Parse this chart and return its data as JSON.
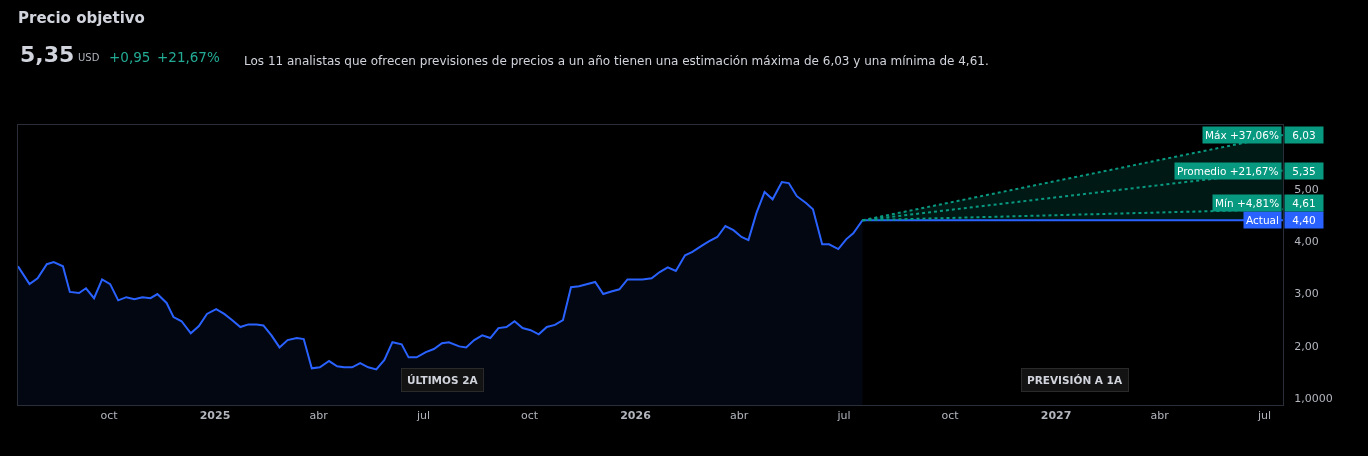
{
  "chart_data": {
    "type": "area",
    "title": "Precio objetivo",
    "annotations": [
      "5,35",
      "USD",
      "+0,95",
      "+21,67%",
      "Los 11 analistas que ofrecen previsiones de precios a un año tienen una estimación máxima de 6,03 y una mínima de 4,61.",
      "ÚLTIMOS 2A",
      "PREVISIÓN A 1A"
    ],
    "xlim": [
      "2024-07-14",
      "2027-07-17"
    ],
    "xticks": [
      {
        "value": "2024-10-01",
        "label": "oct"
      },
      {
        "value": "2025-01-01",
        "label": "2025"
      },
      {
        "value": "2025-04-01",
        "label": "abr"
      },
      {
        "value": "2025-07-01",
        "label": "jul"
      },
      {
        "value": "2025-10-01",
        "label": "oct"
      },
      {
        "value": "2026-01-01",
        "label": "2026"
      },
      {
        "value": "2026-04-01",
        "label": "abr"
      },
      {
        "value": "2026-07-01",
        "label": "jul"
      },
      {
        "value": "2026-10-01",
        "label": "oct"
      },
      {
        "value": "2027-01-01",
        "label": "2027"
      },
      {
        "value": "2027-04-01",
        "label": "abr"
      },
      {
        "value": "2027-07-01",
        "label": "jul"
      }
    ],
    "ylim": [
      0.87,
      6.22
    ],
    "yticks": [
      {
        "value": 1,
        "label": "1,0000"
      },
      {
        "value": 2,
        "label": "2,00"
      },
      {
        "value": 3,
        "label": "3,00"
      },
      {
        "value": 4,
        "label": "4,00"
      },
      {
        "value": 5,
        "label": "5,00"
      }
    ],
    "grid": false,
    "legend": "right",
    "series": [
      {
        "color": "#2962ff",
        "x": [
          "2024-07-14",
          "2024-07-24",
          "2024-07-31",
          "2024-08-08",
          "2024-08-14",
          "2024-08-22",
          "2024-08-28",
          "2024-09-05",
          "2024-09-11",
          "2024-09-18",
          "2024-09-25",
          "2024-10-02",
          "2024-10-09",
          "2024-10-16",
          "2024-10-23",
          "2024-10-30",
          "2024-11-06",
          "2024-11-12",
          "2024-11-20",
          "2024-11-26",
          "2024-12-03",
          "2024-12-11",
          "2024-12-18",
          "2024-12-25",
          "2025-01-02",
          "2025-01-09",
          "2025-01-16",
          "2025-01-23",
          "2025-01-30",
          "2025-02-06",
          "2025-02-12",
          "2025-02-19",
          "2025-02-26",
          "2025-03-05",
          "2025-03-13",
          "2025-03-19",
          "2025-03-26",
          "2025-04-02",
          "2025-04-10",
          "2025-04-17",
          "2025-04-23",
          "2025-04-30",
          "2025-05-07",
          "2025-05-14",
          "2025-05-21",
          "2025-05-28",
          "2025-06-04",
          "2025-06-12",
          "2025-06-18",
          "2025-06-25",
          "2025-07-03",
          "2025-07-10",
          "2025-07-17",
          "2025-07-23",
          "2025-08-01",
          "2025-08-07",
          "2025-08-14",
          "2025-08-21",
          "2025-08-28",
          "2025-09-04",
          "2025-09-11",
          "2025-09-18",
          "2025-09-25",
          "2025-10-02",
          "2025-10-09",
          "2025-10-16",
          "2025-10-23",
          "2025-10-30",
          "2025-11-06",
          "2025-11-13",
          "2025-11-27",
          "2025-12-04",
          "2025-12-11",
          "2025-12-18",
          "2025-12-25",
          "2026-01-07",
          "2026-01-15",
          "2026-01-22",
          "2026-01-29",
          "2026-02-05",
          "2026-02-13",
          "2026-02-19",
          "2026-02-28",
          "2026-03-06",
          "2026-03-13",
          "2026-03-20",
          "2026-03-27",
          "2026-04-03",
          "2026-04-09",
          "2026-04-16",
          "2026-04-23",
          "2026-04-30",
          "2026-05-08",
          "2026-05-14",
          "2026-05-21",
          "2026-05-29",
          "2026-06-04",
          "2026-06-12",
          "2026-06-18",
          "2026-06-26",
          "2026-07-03",
          "2026-07-09",
          "2026-07-17"
        ],
        "values": [
          3.52,
          3.18,
          3.29,
          3.56,
          3.6,
          3.52,
          3.03,
          3.01,
          3.1,
          2.91,
          3.27,
          3.18,
          2.87,
          2.93,
          2.89,
          2.93,
          2.91,
          2.99,
          2.82,
          2.55,
          2.47,
          2.24,
          2.38,
          2.61,
          2.7,
          2.61,
          2.49,
          2.36,
          2.41,
          2.41,
          2.39,
          2.2,
          1.97,
          2.11,
          2.15,
          2.13,
          1.57,
          1.59,
          1.71,
          1.61,
          1.59,
          1.59,
          1.67,
          1.59,
          1.55,
          1.73,
          2.07,
          2.03,
          1.78,
          1.78,
          1.88,
          1.94,
          2.05,
          2.07,
          1.99,
          1.97,
          2.11,
          2.2,
          2.15,
          2.34,
          2.36,
          2.47,
          2.34,
          2.3,
          2.22,
          2.36,
          2.4,
          2.49,
          3.12,
          3.14,
          3.22,
          2.99,
          3.04,
          3.08,
          3.27,
          3.27,
          3.29,
          3.41,
          3.5,
          3.43,
          3.73,
          3.79,
          3.92,
          4.0,
          4.08,
          4.29,
          4.21,
          4.08,
          4.02,
          4.54,
          4.94,
          4.8,
          5.13,
          5.11,
          4.86,
          4.73,
          4.61,
          3.94,
          3.94,
          3.85,
          4.04,
          4.15,
          4.4
        ]
      },
      {
        "type": "line",
        "name": "Actual",
        "color": "#2962ff",
        "line_style": "solid",
        "x": [
          "2026-07-17",
          "2027-07-17"
        ],
        "values": [
          4.4,
          4.4
        ],
        "value_labels": [
          null,
          "4,40"
        ]
      },
      {
        "type": "line",
        "name": "Mín +4,81%",
        "color": "#089981",
        "line_style": "dotted",
        "x": [
          "2026-07-17",
          "2027-07-17"
        ],
        "values": [
          4.4,
          4.61
        ],
        "value_labels": [
          null,
          "4,61"
        ]
      },
      {
        "type": "line",
        "name": "Promedio +21,67%",
        "color": "#089981",
        "line_style": "dotted",
        "x": [
          "2026-07-17",
          "2027-07-17"
        ],
        "values": [
          4.4,
          5.35
        ],
        "value_labels": [
          null,
          "5,35"
        ]
      },
      {
        "type": "line",
        "name": "Máx +37,06%",
        "color": "#089981",
        "line_style": "dotted",
        "x": [
          "2026-07-17",
          "2027-07-17"
        ],
        "values": [
          4.4,
          6.03
        ],
        "value_labels": [
          null,
          "6,03"
        ]
      }
    ]
  }
}
